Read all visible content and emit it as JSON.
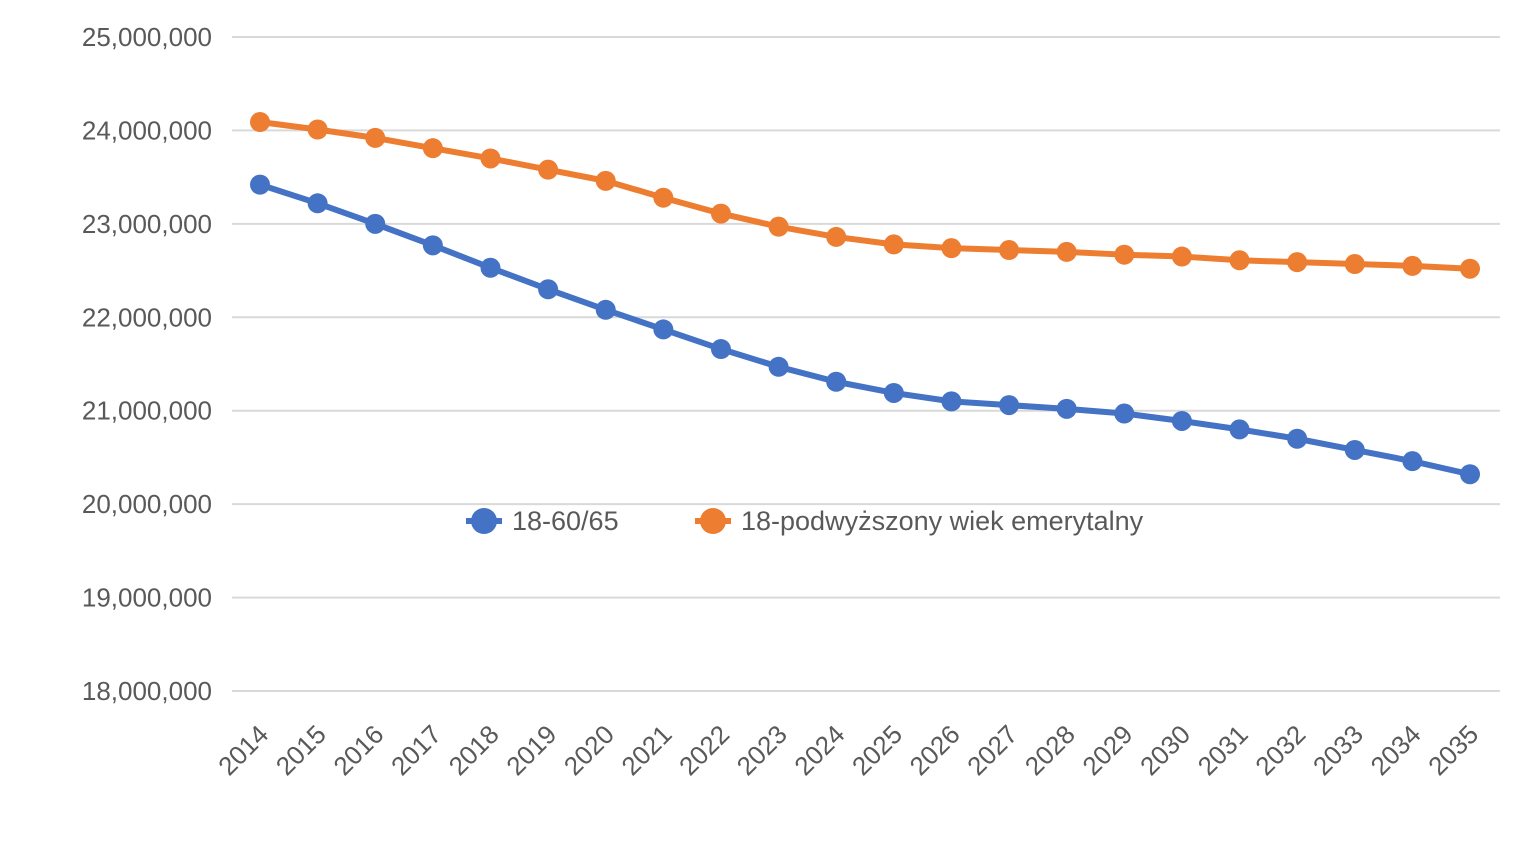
{
  "chart_data": {
    "type": "line",
    "title": "",
    "xlabel": "",
    "ylabel": "",
    "x": [
      "2014",
      "2015",
      "2016",
      "2017",
      "2018",
      "2019",
      "2020",
      "2021",
      "2022",
      "2023",
      "2024",
      "2025",
      "2026",
      "2027",
      "2028",
      "2029",
      "2030",
      "2031",
      "2032",
      "2033",
      "2034",
      "2035"
    ],
    "ylim": [
      18000000,
      25000000
    ],
    "yticks": [
      18000000,
      19000000,
      20000000,
      21000000,
      22000000,
      23000000,
      24000000,
      25000000
    ],
    "ytick_labels": [
      "18,000,000",
      "19,000,000",
      "20,000,000",
      "21,000,000",
      "22,000,000",
      "23,000,000",
      "24,000,000",
      "25,000,000"
    ],
    "grid": true,
    "legend_position": "inside-center",
    "series": [
      {
        "name": "18-60/65",
        "color": "#4472C4",
        "values": [
          23420000,
          23220000,
          23000000,
          22770000,
          22530000,
          22300000,
          22080000,
          21870000,
          21660000,
          21470000,
          21310000,
          21190000,
          21100000,
          21060000,
          21020000,
          20970000,
          20890000,
          20800000,
          20700000,
          20580000,
          20460000,
          20320000
        ]
      },
      {
        "name": "18-podwyższony wiek emerytalny",
        "color": "#ED7D31",
        "values": [
          24090000,
          24010000,
          23920000,
          23810000,
          23700000,
          23580000,
          23460000,
          23280000,
          23110000,
          22970000,
          22860000,
          22780000,
          22740000,
          22720000,
          22700000,
          22670000,
          22650000,
          22610000,
          22590000,
          22570000,
          22550000,
          22520000
        ]
      }
    ]
  }
}
